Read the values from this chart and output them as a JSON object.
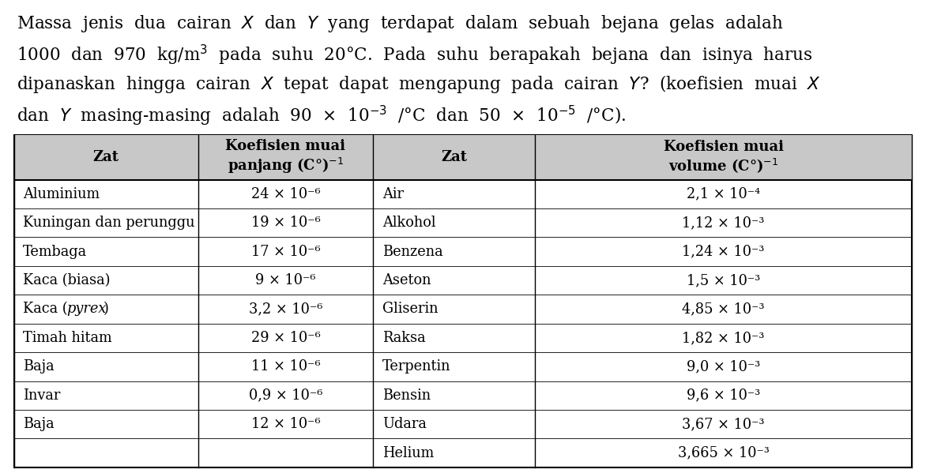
{
  "para_lines": [
    "Massa  jenis  dua  cairan  $X$  dan  $Y$  yang  terdapat  dalam  sebuah  bejana  gelas  adalah",
    "1000  dan  970  kg/m$^3$  pada  suhu  20°C.  Pada  suhu  berapakah  bejana  dan  isinya  harus",
    "dipanaskan  hingga  cairan  $X$  tepat  dapat  mengapung  pada  cairan  $Y$?  (koefisien  muai  $X$",
    "dan  $Y$  masing-masing  adalah  90  $\\times$  10$^{-3}$  /°C  dan  50  $\\times$  10$^{-5}$  /°C)."
  ],
  "header_row": [
    "Zat",
    "Koefisien muai\npanjang (C°)$^{-1}$",
    "Zat",
    "Koefisien muai\nvolume (C°)$^{-1}$"
  ],
  "left_rows": [
    [
      "Aluminium",
      "24 $\\times$ 10$^{-6}$"
    ],
    [
      "Kuningan dan perunggu",
      "19 $\\times$ 10$^{-6}$"
    ],
    [
      "Tembaga",
      "17 $\\times$ 10$^{-6}$"
    ],
    [
      "Kaca (biasa)",
      "9 $\\times$ 10$^{-6}$"
    ],
    [
      "Kaca (\\textit{pyrex})",
      "3,2 $\\times$ 10$^{-6}$"
    ],
    [
      "Timah hitam",
      "29 $\\times$ 10$^{-6}$"
    ],
    [
      "Baja",
      "11 $\\times$ 10$^{-6}$"
    ],
    [
      "Invar",
      "0,9 $\\times$ 10$^{-6}$"
    ],
    [
      "Baja",
      "12 $\\times$ 10$^{-6}$"
    ]
  ],
  "left_rows_plain": [
    [
      "Aluminium",
      "24 × 10⁻⁶"
    ],
    [
      "Kuningan dan perunggu",
      "19 × 10⁻⁶"
    ],
    [
      "Tembaga",
      "17 × 10⁻⁶"
    ],
    [
      "Kaca (biasa)",
      "9 × 10⁻⁶"
    ],
    [
      "Kaca (pyrex)",
      "3,2 × 10⁻⁶"
    ],
    [
      "Timah hitam",
      "29 × 10⁻⁶"
    ],
    [
      "Baja",
      "11 × 10⁻⁶"
    ],
    [
      "Invar",
      "0,9 × 10⁻⁶"
    ],
    [
      "Baja",
      "12 × 10⁻⁶"
    ]
  ],
  "right_rows_plain": [
    [
      "Air",
      "2,1 × 10⁻⁴"
    ],
    [
      "Alkohol",
      "1,12 × 10⁻³"
    ],
    [
      "Benzena",
      "1,24 × 10⁻³"
    ],
    [
      "Aseton",
      "1,5 × 10⁻³"
    ],
    [
      "Gliserin",
      "4,85 × 10⁻³"
    ],
    [
      "Raksa",
      "1,82 × 10⁻³"
    ],
    [
      "Terpentin",
      "9,0 × 10⁻³"
    ],
    [
      "Bensin",
      "9,6 × 10⁻³"
    ],
    [
      "Udara",
      "3,67 × 10⁻³"
    ],
    [
      "Helium",
      "3,665 × 10⁻³"
    ]
  ],
  "bg_color": "#ffffff",
  "text_color": "#000000",
  "header_bg": "#c8c8c8",
  "font_size_para": 15.5,
  "font_size_table": 12.8,
  "font_size_header": 13.0
}
